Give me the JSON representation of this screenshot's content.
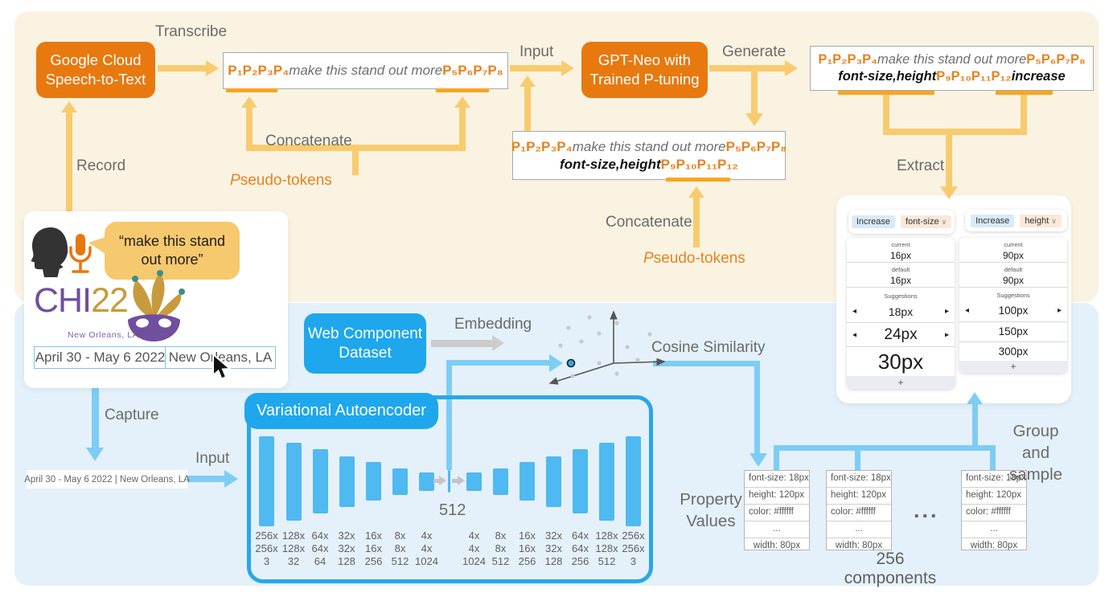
{
  "top_section": {
    "transcribe_label": "Transcribe",
    "record_label": "Record",
    "google_box_line1": "Google Cloud",
    "google_box_line2": "Speech-to-Text",
    "concatenate_label_1": "Concatenate",
    "pseudo_tokens_label_1": "Pseudo-tokens",
    "input_label": "Input",
    "gpt_box_line1": "GPT-Neo with",
    "gpt_box_line2": "Trained P-tuning",
    "generate_label": "Generate",
    "concatenate_label_2": "Concatenate",
    "pseudo_tokens_label_2": "Pseudo-tokens",
    "extract_label": "Extract",
    "boxes": {
      "transcribed": {
        "prefix": "P₁P₂P₃P₄",
        "utterance": "make this stand out more",
        "suffix": "P₅P₆P₇P₈"
      },
      "model_input": {
        "prefix": "P₁P₂P₃P₄",
        "utterance": "make this stand out more",
        "suffix": "P₅P₆P₇P₈",
        "properties": "font-size,height",
        "mid_tokens": "P₉P₁₀P₁₁P₁₂"
      },
      "model_output": {
        "prefix": "P₁P₂P₃P₄",
        "utterance": "make this stand out more",
        "suffix": "P₅P₆P₇P₈",
        "properties": "font-size,height",
        "mid_tokens": "P₉P₁₀P₁₁P₁₂",
        "action": "increase"
      }
    }
  },
  "user_area": {
    "quote_line1": "“make this stand",
    "quote_line2": "out more”",
    "logo_chi": "CHI",
    "logo_year": "22",
    "logo_subtitle": "New Orleans, LA",
    "selected_date": "April 30 - May 6 2022",
    "selected_location": "New Orleans, LA",
    "capture_label": "Capture",
    "captured_text": "April 30 - May 6 2022 | New Orleans, LA",
    "input_label": "Input"
  },
  "vae": {
    "title": "Variational Autoencoder",
    "latent_label": "512",
    "encoder_layers": [
      [
        "256x",
        "256x",
        "3"
      ],
      [
        "128x",
        "128x",
        "32"
      ],
      [
        "64x",
        "64x",
        "64"
      ],
      [
        "32x",
        "32x",
        "128"
      ],
      [
        "16x",
        "16x",
        "256"
      ],
      [
        "8x",
        "8x",
        "512"
      ],
      [
        "4x",
        "4x",
        "1024"
      ]
    ],
    "decoder_layers": [
      [
        "4x",
        "4x",
        "1024"
      ],
      [
        "8x",
        "8x",
        "512"
      ],
      [
        "16x",
        "16x",
        "256"
      ],
      [
        "32x",
        "32x",
        "128"
      ],
      [
        "64x",
        "64x",
        "256"
      ],
      [
        "128x",
        "128x",
        "512"
      ],
      [
        "256x",
        "256x",
        "3"
      ]
    ]
  },
  "embedding_area": {
    "dataset_box_line1": "Web Component",
    "dataset_box_line2": "Dataset",
    "embedding_label": "Embedding",
    "cosine_label": "Cosine Similarity"
  },
  "retrieval": {
    "property_values_line1": "Property",
    "property_values_line2": "Values",
    "group_sample_line1": "Group and",
    "group_sample_line2": "sample",
    "ellipsis": "...",
    "components_label": "256 components",
    "card_rows": [
      "font-size: 18px",
      "height: 120px",
      "color: #ffffff",
      "...",
      "width: 80px"
    ]
  },
  "ui_cards": {
    "arrow_left": "◂",
    "arrow_right": "▸",
    "chevron": "∨",
    "card1": {
      "action": "Increase",
      "property": "font-size",
      "current_label": "current",
      "current_value": "16px",
      "default_label": "default",
      "default_value": "16px",
      "suggestions_label": "Suggestions",
      "s1": "18px",
      "s2": "24px",
      "s3": "30px",
      "add_label": "+"
    },
    "card2": {
      "action": "Increase",
      "property": "height",
      "current_label": "current",
      "current_value": "90px",
      "default_label": "default",
      "default_value": "90px",
      "suggestions_label": "Suggestions",
      "s1": "100px",
      "s2": "150px",
      "s3": "300px",
      "add_label": "+"
    }
  }
}
